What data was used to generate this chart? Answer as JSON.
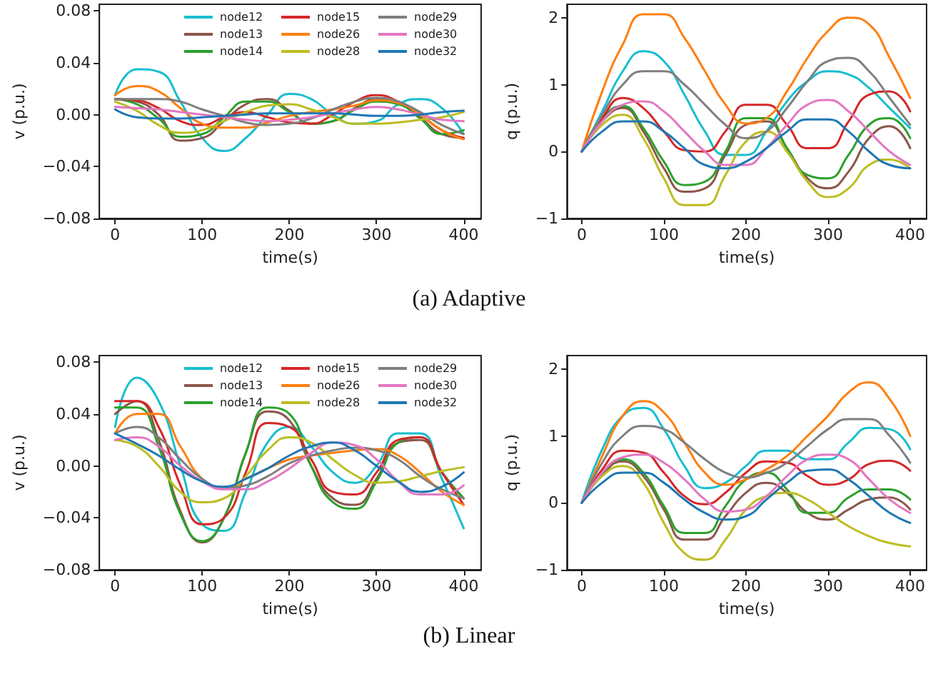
{
  "chart_data": [
    {
      "type": "line",
      "ylabel": "v (p.u.)",
      "xlabel": "time(s)",
      "annotations": [
        "(a) Adaptive"
      ],
      "legend": "top right",
      "grid": false,
      "xlim": [
        -18,
        420
      ],
      "xticks": [
        0,
        100,
        200,
        300,
        400
      ],
      "ylim": [
        -0.08,
        0.085
      ],
      "yticks": [
        {
          "value": -0.08,
          "label": "−0.08"
        },
        {
          "value": -0.04,
          "label": "−0.04"
        },
        {
          "value": 0,
          "label": "0.00"
        },
        {
          "value": 0.04,
          "label": "0.04"
        },
        {
          "value": 0.08,
          "label": "0.08"
        }
      ],
      "x": [
        0,
        25,
        50,
        75,
        100,
        125,
        150,
        175,
        200,
        225,
        250,
        275,
        300,
        325,
        350,
        375,
        400
      ],
      "series": [
        {
          "name": "node12",
          "color": "#17becf",
          "values": [
            0.015,
            0.035,
            0.033,
            0.01,
            -0.018,
            -0.028,
            -0.018,
            0.0,
            0.016,
            0.012,
            0.0,
            -0.007,
            -0.005,
            0.008,
            0.012,
            0.005,
            -0.015
          ]
        },
        {
          "name": "node13",
          "color": "#8c564b",
          "values": [
            0.012,
            0.01,
            0.0,
            -0.02,
            -0.018,
            -0.005,
            0.008,
            0.012,
            0.003,
            -0.007,
            -0.005,
            0.005,
            0.012,
            0.01,
            -0.002,
            -0.015,
            -0.018
          ]
        },
        {
          "name": "node14",
          "color": "#2ca02c",
          "values": [
            0.012,
            0.008,
            -0.003,
            -0.017,
            -0.015,
            -0.002,
            0.01,
            0.01,
            0.002,
            -0.007,
            -0.005,
            0.004,
            0.01,
            0.008,
            -0.003,
            -0.015,
            -0.012
          ]
        },
        {
          "name": "node15",
          "color": "#d62728",
          "values": [
            0.012,
            0.011,
            0.005,
            -0.005,
            -0.008,
            -0.002,
            0.002,
            -0.002,
            -0.006,
            -0.007,
            0.0,
            0.01,
            0.015,
            0.01,
            0.0,
            -0.012,
            -0.018
          ]
        },
        {
          "name": "node26",
          "color": "#ff7f0e",
          "values": [
            0.015,
            0.022,
            0.018,
            0.005,
            -0.007,
            -0.01,
            -0.01,
            -0.006,
            -0.001,
            0.002,
            0.004,
            0.007,
            0.011,
            0.009,
            0.0,
            -0.012,
            -0.019
          ]
        },
        {
          "name": "node28",
          "color": "#bcbd22",
          "values": [
            0.01,
            0.003,
            -0.008,
            -0.014,
            -0.012,
            -0.005,
            0.002,
            0.007,
            0.008,
            0.004,
            -0.002,
            -0.007,
            -0.007,
            -0.006,
            -0.004,
            -0.002,
            0.002
          ]
        },
        {
          "name": "node29",
          "color": "#7f7f7f",
          "values": [
            0.012,
            0.012,
            0.012,
            0.01,
            0.004,
            -0.001,
            -0.006,
            -0.008,
            -0.007,
            -0.003,
            0.004,
            0.01,
            0.013,
            0.01,
            0.002,
            -0.008,
            -0.015
          ]
        },
        {
          "name": "node30",
          "color": "#e377c2",
          "values": [
            0.006,
            0.005,
            0.004,
            0.002,
            0.0,
            -0.002,
            -0.004,
            -0.005,
            -0.004,
            -0.002,
            0.001,
            0.004,
            0.006,
            0.004,
            0.0,
            -0.004,
            -0.005
          ]
        },
        {
          "name": "node32",
          "color": "#1f77b4",
          "values": [
            0.004,
            -0.002,
            -0.003,
            -0.003,
            -0.002,
            -0.001,
            0.0,
            0.001,
            0.001,
            0.001,
            0.001,
            0.0,
            -0.001,
            -0.001,
            0.0,
            0.002,
            0.003
          ]
        }
      ]
    },
    {
      "type": "line",
      "ylabel": "q (p.u.)",
      "xlabel": "time(s)",
      "grid": false,
      "xlim": [
        -18,
        420
      ],
      "xticks": [
        0,
        100,
        200,
        300,
        400
      ],
      "ylim": [
        -1,
        2.2
      ],
      "yticks": [
        {
          "value": -1,
          "label": "−1"
        },
        0,
        1,
        2
      ],
      "x": [
        0,
        25,
        50,
        75,
        100,
        125,
        150,
        175,
        200,
        225,
        250,
        275,
        300,
        325,
        350,
        375,
        400
      ],
      "series": [
        {
          "color": "#17becf",
          "values": [
            0,
            0.6,
            1.2,
            1.5,
            1.35,
            0.85,
            0.3,
            -0.05,
            -0.05,
            0.3,
            0.75,
            1.05,
            1.2,
            1.15,
            0.95,
            0.65,
            0.35
          ]
        },
        {
          "color": "#8c564b",
          "values": [
            0,
            0.45,
            0.65,
            0.3,
            -0.25,
            -0.6,
            -0.55,
            -0.05,
            0.4,
            0.45,
            0.05,
            -0.4,
            -0.55,
            -0.3,
            0.2,
            0.38,
            0.05
          ]
        },
        {
          "color": "#2ca02c",
          "values": [
            0,
            0.5,
            0.68,
            0.35,
            -0.15,
            -0.5,
            -0.45,
            0.0,
            0.5,
            0.5,
            0.05,
            -0.35,
            -0.4,
            -0.05,
            0.4,
            0.5,
            0.2
          ]
        },
        {
          "color": "#d62728",
          "values": [
            0,
            0.5,
            0.8,
            0.65,
            0.3,
            0.02,
            0.0,
            0.3,
            0.7,
            0.7,
            0.4,
            0.05,
            0.05,
            0.45,
            0.85,
            0.9,
            0.6
          ]
        },
        {
          "color": "#ff7f0e",
          "values": [
            0,
            0.9,
            1.6,
            2.05,
            2.05,
            1.7,
            1.2,
            0.7,
            0.42,
            0.5,
            0.9,
            1.4,
            1.8,
            2.0,
            1.9,
            1.4,
            0.8
          ]
        },
        {
          "color": "#bcbd22",
          "values": [
            0,
            0.4,
            0.55,
            0.2,
            -0.4,
            -0.8,
            -0.8,
            -0.35,
            0.15,
            0.3,
            0.0,
            -0.45,
            -0.68,
            -0.55,
            -0.2,
            -0.12,
            -0.25
          ]
        },
        {
          "color": "#7f7f7f",
          "values": [
            0,
            0.55,
            1.0,
            1.2,
            1.2,
            1.0,
            0.7,
            0.4,
            0.2,
            0.3,
            0.65,
            1.05,
            1.35,
            1.4,
            1.2,
            0.8,
            0.4
          ]
        },
        {
          "color": "#e377c2",
          "values": [
            0,
            0.45,
            0.7,
            0.75,
            0.6,
            0.3,
            0.0,
            -0.2,
            -0.2,
            0.05,
            0.4,
            0.7,
            0.77,
            0.6,
            0.3,
            0.0,
            -0.2
          ]
        },
        {
          "color": "#1f77b4",
          "values": [
            0,
            0.3,
            0.45,
            0.45,
            0.3,
            0.05,
            -0.2,
            -0.25,
            -0.15,
            0.05,
            0.3,
            0.48,
            0.48,
            0.3,
            0.0,
            -0.2,
            -0.25
          ]
        }
      ]
    },
    {
      "type": "line",
      "ylabel": "v (p.u.)",
      "xlabel": "time(s)",
      "annotations": [
        "(b) Linear"
      ],
      "legend": "top right",
      "grid": false,
      "xlim": [
        -18,
        420
      ],
      "xticks": [
        0,
        100,
        200,
        300,
        400
      ],
      "ylim": [
        -0.08,
        0.085
      ],
      "yticks": [
        {
          "value": -0.08,
          "label": "−0.08"
        },
        {
          "value": -0.04,
          "label": "−0.04"
        },
        {
          "value": 0,
          "label": "0.00"
        },
        {
          "value": 0.04,
          "label": "0.04"
        },
        {
          "value": 0.08,
          "label": "0.08"
        }
      ],
      "x": [
        0,
        25,
        50,
        75,
        100,
        125,
        150,
        175,
        200,
        225,
        250,
        275,
        300,
        325,
        350,
        375,
        400
      ],
      "series": [
        {
          "name": "node12",
          "color": "#17becf",
          "values": [
            0.03,
            0.068,
            0.05,
            0.0,
            -0.045,
            -0.05,
            -0.02,
            0.018,
            0.03,
            0.015,
            -0.005,
            -0.013,
            0.0,
            0.025,
            0.025,
            -0.01,
            -0.048
          ]
        },
        {
          "name": "node13",
          "color": "#8c564b",
          "values": [
            0.04,
            0.05,
            0.02,
            -0.035,
            -0.059,
            -0.04,
            0.01,
            0.042,
            0.035,
            0.0,
            -0.025,
            -0.03,
            -0.01,
            0.018,
            0.02,
            -0.005,
            -0.025
          ]
        },
        {
          "name": "node14",
          "color": "#2ca02c",
          "values": [
            0.045,
            0.045,
            0.015,
            -0.037,
            -0.058,
            -0.04,
            0.01,
            0.045,
            0.04,
            0.0,
            -0.028,
            -0.033,
            -0.012,
            0.018,
            0.022,
            -0.005,
            -0.025
          ]
        },
        {
          "name": "node15",
          "color": "#d62728",
          "values": [
            0.05,
            0.05,
            0.03,
            -0.015,
            -0.045,
            -0.04,
            -0.005,
            0.033,
            0.03,
            0.005,
            -0.02,
            -0.022,
            -0.005,
            0.02,
            0.022,
            -0.005,
            -0.03
          ]
        },
        {
          "name": "node26",
          "color": "#ff7f0e",
          "values": [
            0.025,
            0.04,
            0.04,
            0.015,
            -0.01,
            -0.017,
            -0.01,
            -0.002,
            0.005,
            0.008,
            0.01,
            0.012,
            0.013,
            0.008,
            -0.005,
            -0.02,
            -0.03
          ]
        },
        {
          "name": "node28",
          "color": "#bcbd22",
          "values": [
            0.02,
            0.015,
            0.0,
            -0.02,
            -0.028,
            -0.025,
            -0.008,
            0.012,
            0.022,
            0.018,
            0.005,
            -0.007,
            -0.013,
            -0.012,
            -0.008,
            -0.004,
            -0.001
          ]
        },
        {
          "name": "node29",
          "color": "#7f7f7f",
          "values": [
            0.025,
            0.03,
            0.022,
            0.005,
            -0.01,
            -0.017,
            -0.015,
            -0.008,
            0.002,
            0.008,
            0.012,
            0.014,
            0.012,
            0.005,
            -0.008,
            -0.018,
            -0.025
          ]
        },
        {
          "name": "node30",
          "color": "#e377c2",
          "values": [
            0.02,
            0.022,
            0.015,
            0.0,
            -0.012,
            -0.018,
            -0.018,
            -0.012,
            -0.002,
            0.01,
            0.018,
            0.016,
            0.005,
            -0.012,
            -0.022,
            -0.022,
            -0.015
          ]
        },
        {
          "name": "node32",
          "color": "#1f77b4",
          "values": [
            0.025,
            0.017,
            0.008,
            -0.003,
            -0.012,
            -0.016,
            -0.01,
            -0.002,
            0.008,
            0.015,
            0.018,
            0.012,
            0.0,
            -0.012,
            -0.02,
            -0.016,
            -0.005
          ]
        }
      ]
    },
    {
      "type": "line",
      "ylabel": "q (p.u.)",
      "xlabel": "time(s)",
      "grid": false,
      "xlim": [
        -18,
        420
      ],
      "xticks": [
        0,
        100,
        200,
        300,
        400
      ],
      "ylim": [
        -1,
        2.2
      ],
      "yticks": [
        {
          "value": -1,
          "label": "−1"
        },
        0,
        1,
        2
      ],
      "x": [
        0,
        25,
        50,
        75,
        100,
        125,
        150,
        175,
        200,
        225,
        250,
        275,
        300,
        325,
        350,
        375,
        400
      ],
      "series": [
        {
          "color": "#17becf",
          "values": [
            0,
            0.8,
            1.3,
            1.42,
            1.1,
            0.55,
            0.22,
            0.3,
            0.55,
            0.78,
            0.78,
            0.65,
            0.65,
            0.9,
            1.12,
            1.1,
            0.8
          ]
        },
        {
          "color": "#8c564b",
          "values": [
            0,
            0.42,
            0.62,
            0.4,
            -0.1,
            -0.55,
            -0.55,
            -0.2,
            0.15,
            0.3,
            0.15,
            -0.15,
            -0.25,
            -0.1,
            0.05,
            0.08,
            -0.1
          ]
        },
        {
          "color": "#2ca02c",
          "values": [
            0,
            0.45,
            0.65,
            0.45,
            -0.05,
            -0.45,
            -0.45,
            -0.05,
            0.35,
            0.45,
            0.2,
            -0.15,
            -0.15,
            0.08,
            0.2,
            0.2,
            0.05
          ]
        },
        {
          "color": "#d62728",
          "values": [
            0,
            0.5,
            0.78,
            0.75,
            0.45,
            0.1,
            -0.02,
            0.15,
            0.45,
            0.62,
            0.6,
            0.4,
            0.27,
            0.35,
            0.58,
            0.63,
            0.48
          ]
        },
        {
          "color": "#ff7f0e",
          "values": [
            0,
            0.7,
            1.3,
            1.52,
            1.35,
            0.9,
            0.45,
            0.27,
            0.35,
            0.5,
            0.7,
            1.0,
            1.3,
            1.65,
            1.8,
            1.55,
            1.0
          ]
        },
        {
          "color": "#bcbd22",
          "values": [
            0,
            0.4,
            0.55,
            0.3,
            -0.3,
            -0.75,
            -0.85,
            -0.55,
            -0.1,
            0.1,
            0.15,
            0.05,
            -0.15,
            -0.35,
            -0.5,
            -0.6,
            -0.65
          ]
        },
        {
          "color": "#7f7f7f",
          "values": [
            0,
            0.6,
            1.0,
            1.15,
            1.1,
            0.9,
            0.65,
            0.45,
            0.38,
            0.45,
            0.6,
            0.85,
            1.1,
            1.25,
            1.25,
            1.0,
            0.6
          ]
        },
        {
          "color": "#e377c2",
          "values": [
            0,
            0.45,
            0.68,
            0.72,
            0.6,
            0.35,
            0.05,
            -0.13,
            -0.1,
            0.1,
            0.4,
            0.65,
            0.72,
            0.65,
            0.35,
            0.05,
            -0.15
          ]
        },
        {
          "color": "#1f77b4",
          "values": [
            0,
            0.3,
            0.45,
            0.45,
            0.3,
            0.05,
            -0.15,
            -0.25,
            -0.2,
            0.05,
            0.3,
            0.48,
            0.5,
            0.35,
            0.1,
            -0.15,
            -0.3
          ]
        }
      ]
    }
  ]
}
